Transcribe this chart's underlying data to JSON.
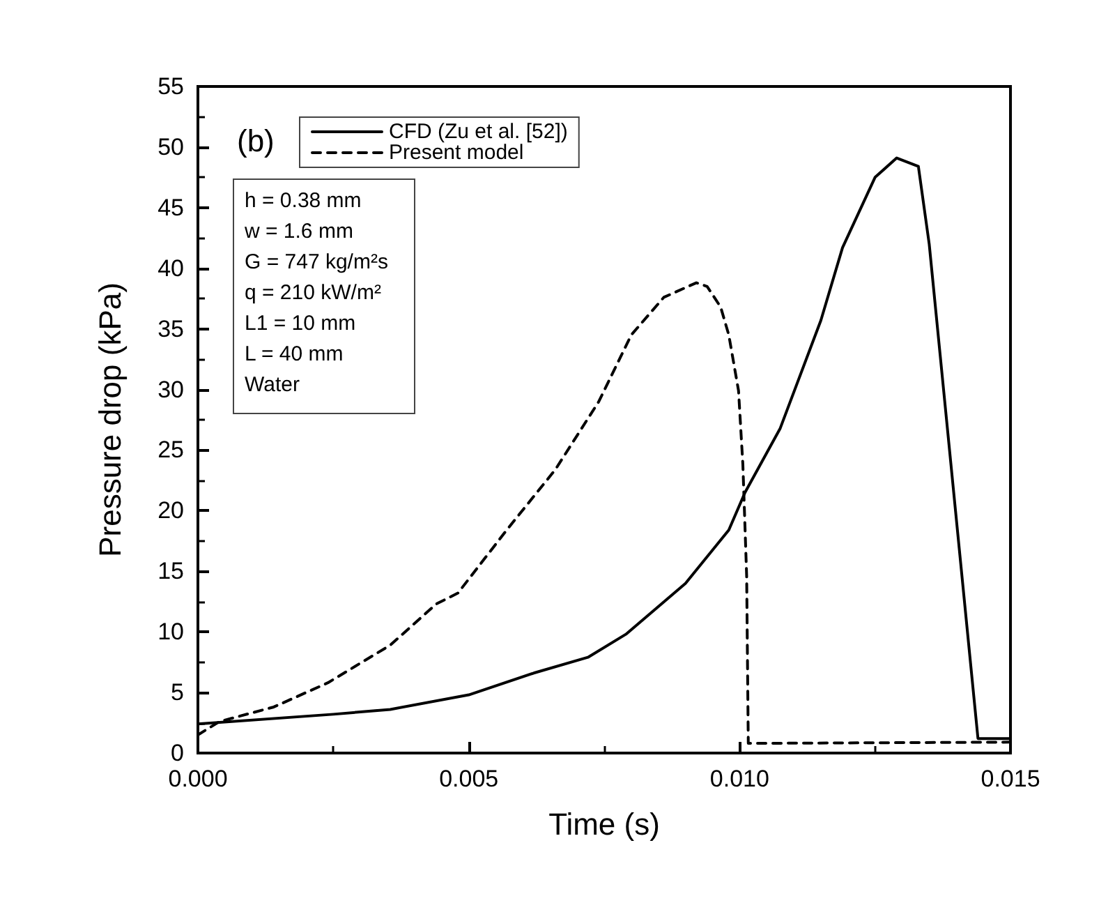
{
  "chart_data": {
    "type": "line",
    "xlabel": "Time (s)",
    "ylabel": "Pressure drop (kPa)",
    "xlim": [
      0,
      0.015
    ],
    "xticks": [
      {
        "value": 0,
        "label": "0.000"
      },
      {
        "value": 0.005,
        "label": "0.005"
      },
      {
        "value": 0.01,
        "label": "0.010"
      },
      {
        "value": 0.015,
        "label": "0.015"
      }
    ],
    "ylim": [
      0,
      55
    ],
    "yticks": [
      0,
      5,
      10,
      15,
      20,
      25,
      30,
      35,
      40,
      45,
      50,
      55
    ],
    "grid": false,
    "legend": "top",
    "marker": "none",
    "annotations": [
      "(b)",
      "h = 0.38 mm",
      "w = 1.6 mm",
      "G = 747 kg/m²s",
      "q = 210 kW/m²",
      "L1 = 10 mm",
      "L = 40 mm",
      "Water"
    ],
    "series": [
      {
        "name": "CFD (Zu et al. [52])",
        "color": "#000000",
        "line_style": "solid",
        "x": [
          0,
          0.0025,
          0.00355,
          0.005,
          0.0062,
          0.0072,
          0.0079,
          0.009,
          0.0098,
          0.0101,
          0.01075,
          0.0115,
          0.0119,
          0.0125,
          0.0129,
          0.0133,
          0.0135,
          0.0144,
          0.015
        ],
        "values": [
          2.4,
          3.2,
          3.6,
          4.8,
          6.6,
          7.9,
          9.8,
          14.0,
          18.4,
          21.5,
          26.8,
          35.7,
          41.7,
          47.5,
          49.1,
          48.4,
          42.0,
          1.2,
          1.2
        ]
      },
      {
        "name": "Present model",
        "color": "#000000",
        "line_style": "dashed",
        "x": [
          0,
          0.0004,
          0.0014,
          0.0024,
          0.00355,
          0.0044,
          0.0048,
          0.0057,
          0.0066,
          0.0074,
          0.008,
          0.0086,
          0.0092,
          0.0094,
          0.00965,
          0.0098,
          0.00998,
          0.01006,
          0.01013,
          0.01016,
          0.015
        ],
        "values": [
          1.5,
          2.6,
          3.8,
          5.8,
          8.9,
          12.3,
          13.2,
          18.4,
          23.4,
          29.0,
          34.5,
          37.6,
          38.8,
          38.5,
          36.8,
          34.5,
          29.9,
          23.8,
          14.6,
          0.8,
          0.9
        ]
      }
    ]
  }
}
